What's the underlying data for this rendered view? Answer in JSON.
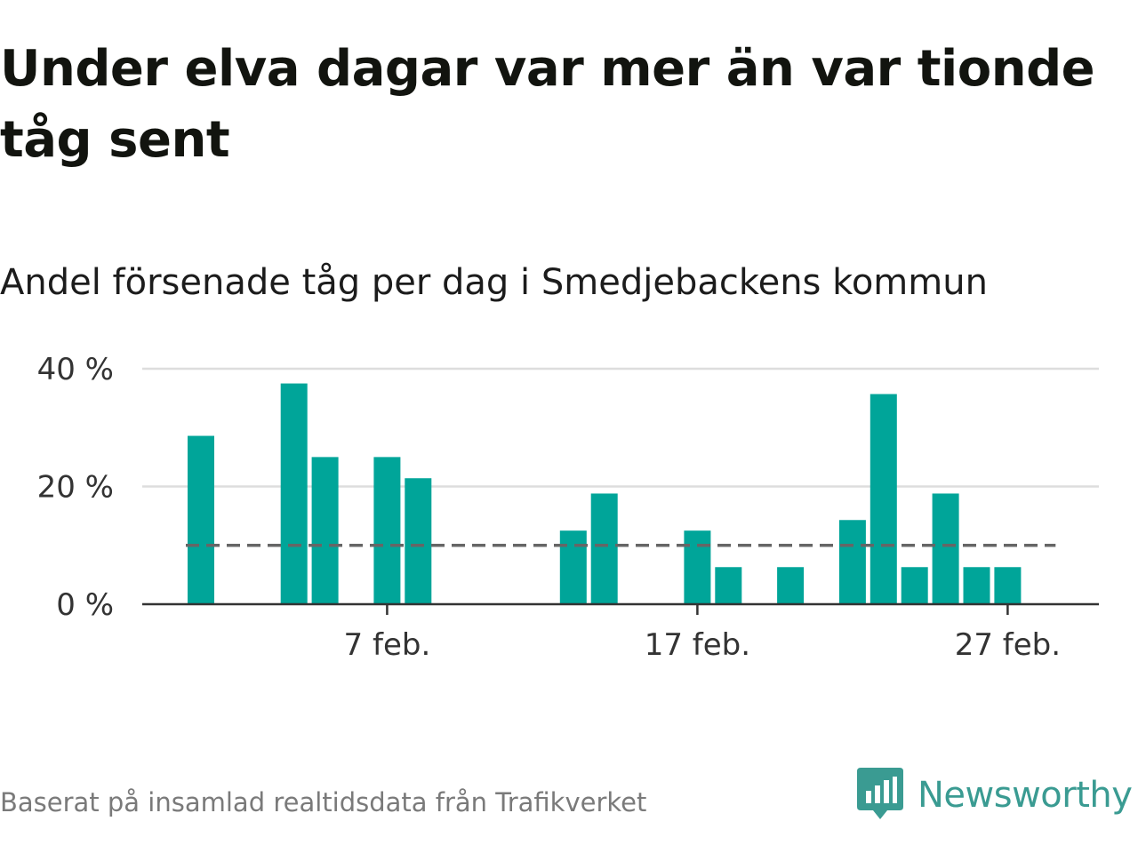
{
  "header": {
    "title": "Under elva dagar var mer än var tionde tåg sent",
    "subtitle": "Andel försenade tåg per dag i Smedjebackens kommun"
  },
  "footer": {
    "source": "Baserat på insamlad realtidsdata från Trafikverket",
    "brand": "Newsworthy",
    "brand_icon": "newsworthy-logo-icon"
  },
  "colors": {
    "bar": "#00a599",
    "reference_line": "#666666",
    "grid": "#dddddd",
    "axis": "#333333",
    "brand": "#3a9b92"
  },
  "chart_data": {
    "type": "bar",
    "x": [
      "1 feb.",
      "2 feb.",
      "3 feb.",
      "4 feb.",
      "5 feb.",
      "6 feb.",
      "7 feb.",
      "8 feb.",
      "9 feb.",
      "10 feb.",
      "11 feb.",
      "12 feb.",
      "13 feb.",
      "14 feb.",
      "15 feb.",
      "16 feb.",
      "17 feb.",
      "18 feb.",
      "19 feb.",
      "20 feb.",
      "21 feb.",
      "22 feb.",
      "23 feb.",
      "24 feb.",
      "25 feb.",
      "26 feb.",
      "27 feb.",
      "28 feb."
    ],
    "values": [
      28.6,
      0,
      0,
      37.5,
      25,
      0,
      25,
      21.4,
      0,
      0,
      0,
      0,
      12.5,
      18.8,
      0,
      0,
      12.5,
      6.3,
      0,
      6.3,
      0,
      14.3,
      35.7,
      6.3,
      18.8,
      6.3,
      6.3,
      0
    ],
    "reference_line": {
      "value": 10,
      "style": "dashed"
    },
    "x_ticks": [
      "7 feb.",
      "17 feb.",
      "27 feb."
    ],
    "y_ticks": [
      "0 %",
      "20 %",
      "40 %"
    ],
    "y_tick_values": [
      0,
      20,
      40
    ],
    "ylim": [
      0,
      40
    ],
    "grid": true
  }
}
